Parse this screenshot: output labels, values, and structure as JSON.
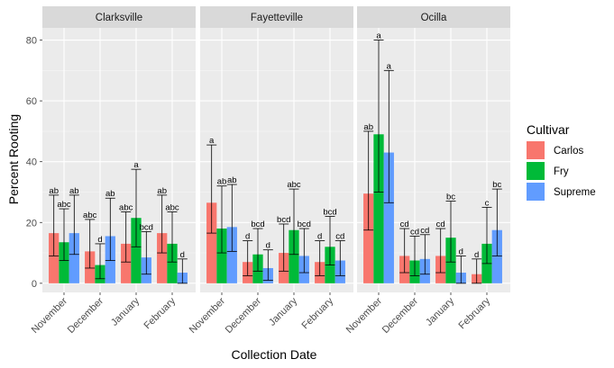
{
  "chart_data": {
    "type": "bar",
    "facets": [
      "Clarksville",
      "Fayetteville",
      "Ocilla"
    ],
    "categories": [
      "November",
      "December",
      "January",
      "February"
    ],
    "xlabel": "Collection Date",
    "ylabel": "Percent Rooting",
    "ylim": [
      -3,
      84
    ],
    "yticks": [
      0,
      20,
      40,
      60,
      80
    ],
    "grid": true,
    "legend": {
      "title": "Cultivar",
      "placement": "right",
      "entries": [
        "Carlos",
        "Fry",
        "Supreme"
      ]
    },
    "colors": {
      "Carlos": "#F8766D",
      "Fry": "#00BA38",
      "Supreme": "#619CFF",
      "panel_bg": "#EBEBEB",
      "strip_bg": "#D9D9D9",
      "grid_major": "#FFFFFF"
    },
    "data": {
      "Clarksville": {
        "Carlos": {
          "values": [
            16.5,
            10.5,
            13,
            16.5
          ],
          "lower": [
            9,
            5,
            7,
            10
          ],
          "upper": [
            29,
            21,
            23.5,
            29
          ],
          "labels": [
            "ab",
            "abc",
            "abc",
            "ab"
          ]
        },
        "Fry": {
          "values": [
            13.5,
            6,
            21.5,
            13
          ],
          "lower": [
            7.5,
            1.5,
            12,
            7
          ],
          "upper": [
            24.5,
            13,
            37.5,
            23.5
          ],
          "labels": [
            "abc",
            "d",
            "a",
            "abc"
          ]
        },
        "Supreme": {
          "values": [
            16.5,
            15.5,
            8.5,
            3.5
          ],
          "lower": [
            9.5,
            7.5,
            3,
            0
          ],
          "upper": [
            29,
            28,
            17,
            8
          ],
          "labels": [
            "ab",
            "ab",
            "bcd",
            "d"
          ]
        }
      },
      "Fayetteville": {
        "Carlos": {
          "values": [
            26.5,
            7,
            10,
            7
          ],
          "lower": [
            16.5,
            2.5,
            4,
            2.5
          ],
          "upper": [
            45.5,
            14,
            19.5,
            14
          ],
          "labels": [
            "a",
            "d",
            "bcd",
            "d"
          ]
        },
        "Fry": {
          "values": [
            18,
            9.5,
            17.5,
            12
          ],
          "lower": [
            10,
            4,
            9.5,
            6
          ],
          "upper": [
            32,
            18,
            31,
            22
          ],
          "labels": [
            "ab",
            "bcd",
            "abc",
            "bcd"
          ]
        },
        "Supreme": {
          "values": [
            18.5,
            5,
            9,
            7.5
          ],
          "lower": [
            10.5,
            1,
            3.5,
            2.5
          ],
          "upper": [
            32.5,
            11,
            18,
            14
          ],
          "labels": [
            "ab",
            "d",
            "bcd",
            "cd"
          ]
        }
      },
      "Ocilla": {
        "Carlos": {
          "values": [
            29.5,
            9,
            9,
            3
          ],
          "lower": [
            17.5,
            3.5,
            3.5,
            0
          ],
          "upper": [
            50,
            18,
            18,
            8
          ],
          "labels": [
            "ab",
            "cd",
            "cd",
            "d"
          ]
        },
        "Fry": {
          "values": [
            49,
            7.5,
            15,
            13
          ],
          "lower": [
            30,
            2.5,
            7,
            6.5
          ],
          "upper": [
            80,
            15.5,
            27,
            25
          ],
          "labels": [
            "a",
            "cd",
            "bc",
            "c"
          ]
        },
        "Supreme": {
          "values": [
            43,
            8,
            3.5,
            17.5
          ],
          "lower": [
            26.5,
            3,
            0,
            9
          ],
          "upper": [
            70,
            16,
            9,
            31
          ],
          "labels": [
            "a",
            "cd",
            "d",
            "bc"
          ]
        }
      }
    }
  }
}
